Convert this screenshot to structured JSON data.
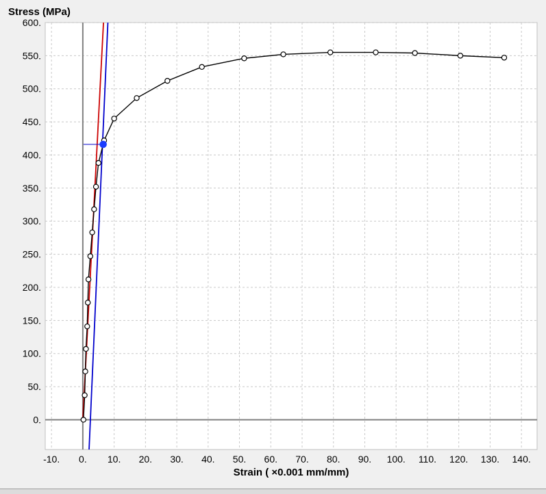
{
  "chart_data": {
    "type": "scatter",
    "ylabel": "Stress (MPa)",
    "xlabel": "Strain ( ×0.001 mm/mm)",
    "xlim": [
      -12,
      145
    ],
    "ylim": [
      -45,
      600
    ],
    "x_ticks": [
      -10,
      0,
      10,
      20,
      30,
      40,
      50,
      60,
      70,
      80,
      90,
      100,
      110,
      120,
      130,
      140
    ],
    "y_ticks": [
      0,
      50,
      100,
      150,
      200,
      250,
      300,
      350,
      400,
      450,
      500,
      550,
      600
    ],
    "x_tick_labels": [
      "-10.",
      "0.",
      "10.",
      "20.",
      "30.",
      "40.",
      "50.",
      "60.",
      "70.",
      "80.",
      "90.",
      "100.",
      "110.",
      "120.",
      "130.",
      "140."
    ],
    "y_tick_labels": [
      "0.",
      "50.",
      "100.",
      "150.",
      "200.",
      "250.",
      "300.",
      "350.",
      "400.",
      "450.",
      "500.",
      "550.",
      "600."
    ],
    "grid": true,
    "series": [
      {
        "style": "line-markers",
        "color": "#000000",
        "marker": "open-circle",
        "x": [
          0.2,
          0.6,
          0.8,
          1.0,
          1.4,
          1.6,
          1.8,
          2.4,
          3.0,
          3.6,
          4.2,
          5.0,
          6.8,
          10.0,
          17.2,
          27.0,
          38.0,
          51.5,
          64.0,
          79.0,
          93.5,
          106.0,
          120.5,
          134.5
        ],
        "y": [
          0,
          37,
          73,
          107,
          141,
          177,
          212,
          247,
          283,
          318,
          352,
          388,
          422,
          455,
          486,
          512,
          533,
          546,
          552,
          555,
          555,
          554,
          550,
          547
        ]
      }
    ],
    "lines": [
      {
        "name": "",
        "color": "#cc0000",
        "points": [
          [
            0,
            0
          ],
          [
            6.6,
            600
          ]
        ]
      },
      {
        "name": "",
        "color": "#0000cc",
        "points": [
          [
            2,
            -45
          ],
          [
            8.0,
            600
          ]
        ]
      }
    ],
    "highlight_point": {
      "x": 6.5,
      "y": 416,
      "color": "#1a3cff"
    },
    "guide_line": {
      "color": "#0000cc",
      "from": [
        0.2,
        416
      ],
      "to": [
        6.5,
        416
      ]
    }
  }
}
